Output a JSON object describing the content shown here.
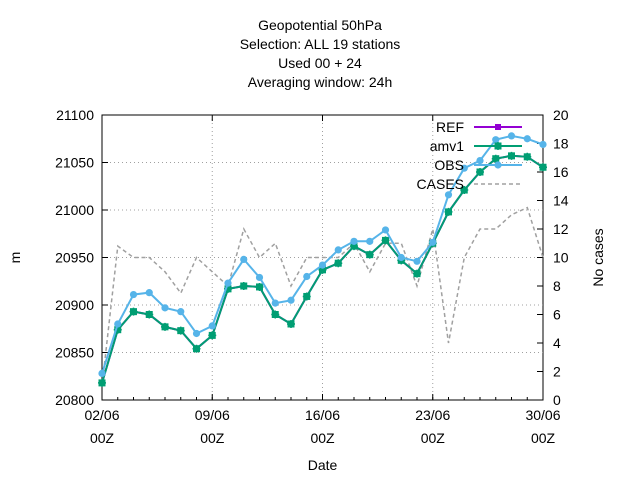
{
  "chart_data": {
    "type": "line",
    "title_lines": [
      "Geopotential 50hPa",
      "Selection: ALL      19 stations",
      "Used  00  + 24",
      "Averaging window: 24h"
    ],
    "xlabel": "Date",
    "ylabel": "m",
    "y2label": "No cases",
    "xlim": [
      0,
      28
    ],
    "ylim": [
      20800,
      21100
    ],
    "y2lim": [
      0,
      20
    ],
    "x_ticks": [
      {
        "x": 0,
        "line1": "02/06",
        "line2": "00Z"
      },
      {
        "x": 7,
        "line1": "09/06",
        "line2": "00Z"
      },
      {
        "x": 14,
        "line1": "16/06",
        "line2": "00Z"
      },
      {
        "x": 21,
        "line1": "23/06",
        "line2": "00Z"
      },
      {
        "x": 28,
        "line1": "30/06",
        "line2": "00Z"
      }
    ],
    "y_ticks": [
      20800,
      20850,
      20900,
      20950,
      21000,
      21050,
      21100
    ],
    "y2_ticks": [
      0,
      2,
      4,
      6,
      8,
      10,
      12,
      14,
      16,
      18,
      20
    ],
    "grid": true,
    "legend_position": "top-right",
    "x": [
      0,
      1,
      2,
      3,
      4,
      5,
      6,
      7,
      8,
      9,
      10,
      11,
      12,
      13,
      14,
      15,
      16,
      17,
      18,
      19,
      20,
      21,
      22,
      23,
      24,
      25,
      26,
      27,
      28
    ],
    "series": [
      {
        "name": "REF",
        "color": "#9400d3",
        "axis": "left",
        "marker": "square",
        "dash": false,
        "values": [
          20818,
          20874,
          20893,
          20890,
          20877,
          20873,
          20854,
          20868,
          20917,
          20920,
          20919,
          20890,
          20880,
          20909,
          20937,
          20944,
          20962,
          20953,
          20968,
          20947,
          20933,
          20965,
          20998,
          21021,
          21040,
          21054,
          21057,
          21056,
          21045
        ]
      },
      {
        "name": "amv1",
        "color": "#009e73",
        "axis": "left",
        "marker": "plus-square",
        "dash": false,
        "values": [
          20818,
          20874,
          20893,
          20890,
          20877,
          20873,
          20854,
          20868,
          20917,
          20920,
          20919,
          20890,
          20880,
          20909,
          20937,
          20944,
          20962,
          20953,
          20968,
          20947,
          20933,
          20965,
          20998,
          21021,
          21040,
          21054,
          21057,
          21056,
          21045
        ]
      },
      {
        "name": "OBS",
        "color": "#56b4e9",
        "axis": "left",
        "marker": "circle",
        "dash": false,
        "values": [
          20828,
          20880,
          20911,
          20913,
          20897,
          20893,
          20870,
          20878,
          20923,
          20948,
          20929,
          20902,
          20905,
          20930,
          20942,
          20958,
          20967,
          20967,
          20979,
          20950,
          20946,
          20966,
          21016,
          21044,
          21052,
          21074,
          21078,
          21075,
          21069
        ]
      },
      {
        "name": "CASES",
        "color": "#a0a0a0",
        "axis": "right",
        "marker": "none",
        "dash": true,
        "values": [
          1,
          10.8,
          10,
          10,
          9,
          7.5,
          10,
          9,
          8,
          12,
          10,
          11,
          8,
          10,
          10,
          10,
          11,
          9,
          11,
          11,
          8,
          12,
          4,
          10,
          12,
          12,
          13,
          13.5,
          10
        ]
      }
    ]
  }
}
